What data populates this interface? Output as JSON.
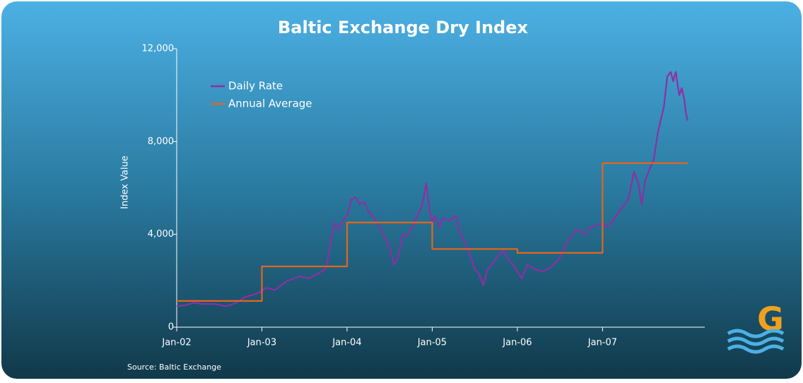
{
  "chart_data": {
    "type": "line",
    "title": "Baltic Exchange Dry Index",
    "y_label": "Index Value",
    "source": "Source: Baltic Exchange",
    "logo": "G",
    "xlim": [
      0,
      6.2
    ],
    "xticks": [
      {
        "value": 0,
        "label": "Jan-02"
      },
      {
        "value": 1,
        "label": "Jan-03"
      },
      {
        "value": 2,
        "label": "Jan-04"
      },
      {
        "value": 3,
        "label": "Jan-05"
      },
      {
        "value": 4,
        "label": "Jan-06"
      },
      {
        "value": 5,
        "label": "Jan-07"
      }
    ],
    "ylim": [
      0,
      12000
    ],
    "yticks": [
      0,
      {
        "value": 4000,
        "label": "4,000"
      },
      {
        "value": 8000,
        "label": "8,000"
      },
      {
        "value": 12000,
        "label": "12,000"
      }
    ],
    "legend": "upper left",
    "series": [
      {
        "name": "Daily Rate",
        "color": "#8e2fa6",
        "x": [
          0,
          0.1,
          0.2,
          0.3,
          0.45,
          0.58,
          0.7,
          0.8,
          0.9,
          0.97,
          1.05,
          1.15,
          1.3,
          1.45,
          1.55,
          1.65,
          1.75,
          1.8,
          1.85,
          1.9,
          1.95,
          2.0,
          2.05,
          2.1,
          2.15,
          2.2,
          2.25,
          2.3,
          2.35,
          2.4,
          2.45,
          2.5,
          2.55,
          2.6,
          2.65,
          2.7,
          2.75,
          2.82,
          2.88,
          2.93,
          2.97,
          3.0,
          3.03,
          3.08,
          3.12,
          3.2,
          3.28,
          3.33,
          3.38,
          3.45,
          3.5,
          3.55,
          3.6,
          3.65,
          3.7,
          3.78,
          3.83,
          3.9,
          3.95,
          4.0,
          4.05,
          4.12,
          4.2,
          4.3,
          4.4,
          4.5,
          4.6,
          4.7,
          4.8,
          4.85,
          4.95,
          5.0,
          5.05,
          5.1,
          5.2,
          5.3,
          5.33,
          5.37,
          5.42,
          5.46,
          5.5,
          5.55,
          5.6,
          5.65,
          5.72,
          5.76,
          5.8,
          5.83,
          5.86,
          5.9,
          5.93,
          5.96,
          5.98,
          6.0
        ],
        "values": [
          900,
          950,
          1050,
          1000,
          1000,
          900,
          1050,
          1300,
          1400,
          1500,
          1700,
          1600,
          2000,
          2200,
          2100,
          2300,
          2500,
          3500,
          4500,
          4200,
          4600,
          4800,
          5500,
          5600,
          5300,
          5400,
          5000,
          4800,
          4500,
          4200,
          3800,
          3500,
          2700,
          3000,
          4000,
          3900,
          4200,
          4800,
          5200,
          6200,
          5000,
          4500,
          4800,
          4300,
          4700,
          4600,
          4800,
          4000,
          3700,
          3000,
          2500,
          2300,
          1800,
          2500,
          2700,
          3100,
          3300,
          2900,
          2700,
          2400,
          2100,
          2700,
          2500,
          2400,
          2600,
          3000,
          3800,
          4200,
          4000,
          4300,
          4400,
          4500,
          4300,
          4500,
          5000,
          5500,
          6000,
          6700,
          6200,
          5300,
          6300,
          6800,
          7200,
          8400,
          9500,
          10800,
          11000,
          10600,
          11000,
          10000,
          10300,
          9800,
          9200,
          8900
        ]
      },
      {
        "name": "Annual Average",
        "color": "#e2661c",
        "x": [
          0,
          1,
          1,
          2,
          2,
          3,
          3,
          4,
          4,
          5,
          5,
          6
        ],
        "values": [
          1130,
          1130,
          2620,
          2620,
          4510,
          4510,
          3370,
          3370,
          3200,
          3200,
          7070,
          7070
        ]
      }
    ]
  }
}
